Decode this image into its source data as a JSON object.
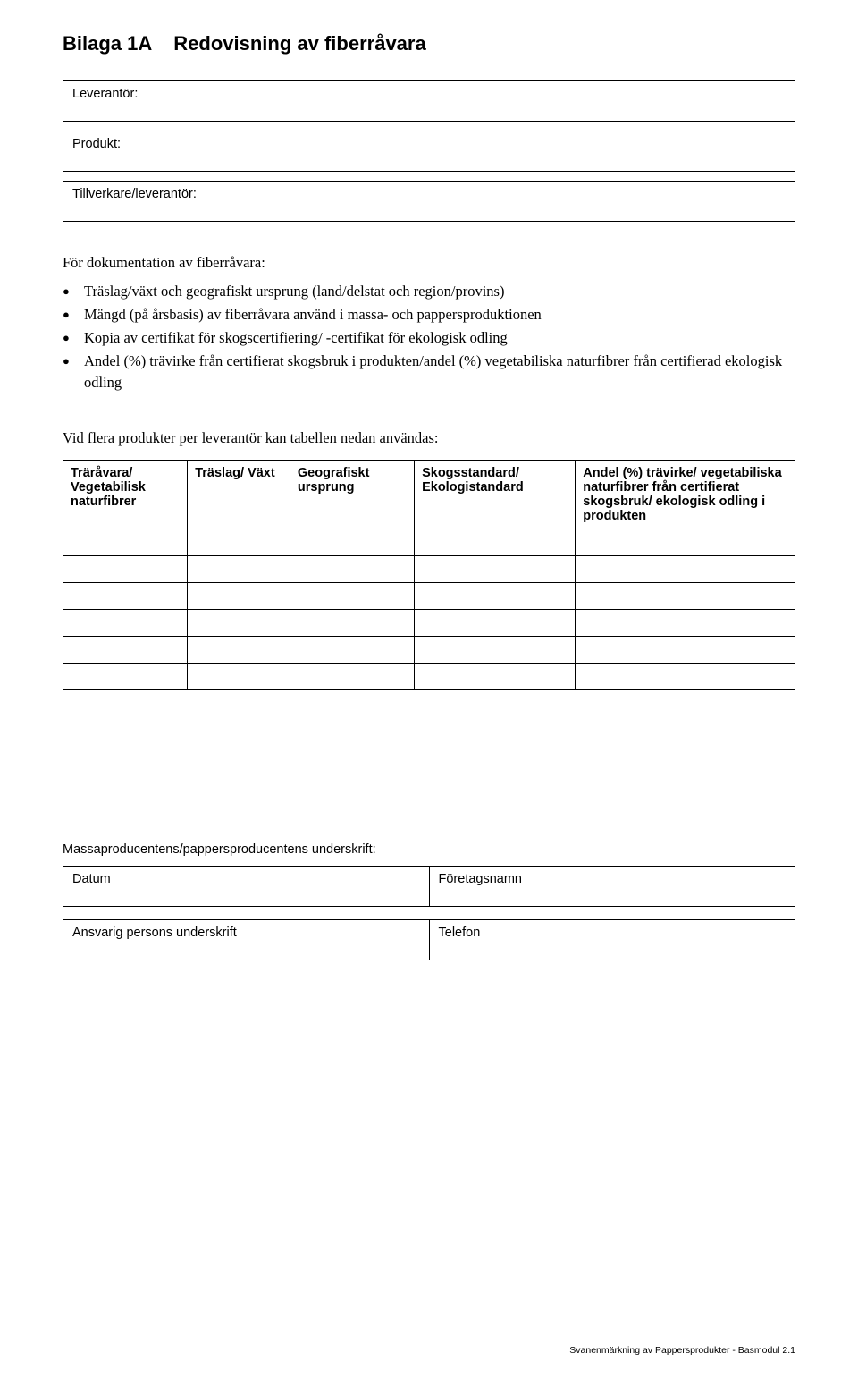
{
  "title_prefix": "Bilaga 1A",
  "title_text": "Redovisning av fiberråvara",
  "field_labels": {
    "leverantor": "Leverantör:",
    "produkt": "Produkt:",
    "tillverkare": "Tillverkare/leverantör:"
  },
  "doc_intro": "För dokumentation av fiberråvara:",
  "bullets": [
    "Träslag/växt och geografiskt ursprung (land/delstat och region/provins)",
    "Mängd (på årsbasis) av fiberråvara använd i massa- och pappersproduktionen",
    "Kopia av certifikat för skogscertifiering/ -certifikat för ekologisk odling",
    "Andel (%) trävirke från certifierat skogsbruk i produkten/andel (%) vegetabiliska naturfibrer från certifierad ekologisk odling"
  ],
  "table_intro": "Vid flera produkter per leverantör kan tabellen nedan användas:",
  "table": {
    "headers": [
      "Träråvara/\nVegetabilisk naturfibrer",
      "Träslag/\nVäxt",
      "Geografiskt ursprung",
      "Skogsstandard/\nEkologistandard",
      "Andel (%) trävirke/ vegetabiliska naturfibrer från certifierat skogsbruk/ ekologisk odling i produkten"
    ],
    "empty_rows": 6
  },
  "signature": {
    "heading": "Massaproducentens/pappersproducentens underskrift:",
    "datum": "Datum",
    "foretag": "Företagsnamn",
    "ansvarig": "Ansvarig persons underskrift",
    "telefon": "Telefon"
  },
  "footer": "Svanenmärkning av Pappersprodukter - Basmodul  2.1"
}
